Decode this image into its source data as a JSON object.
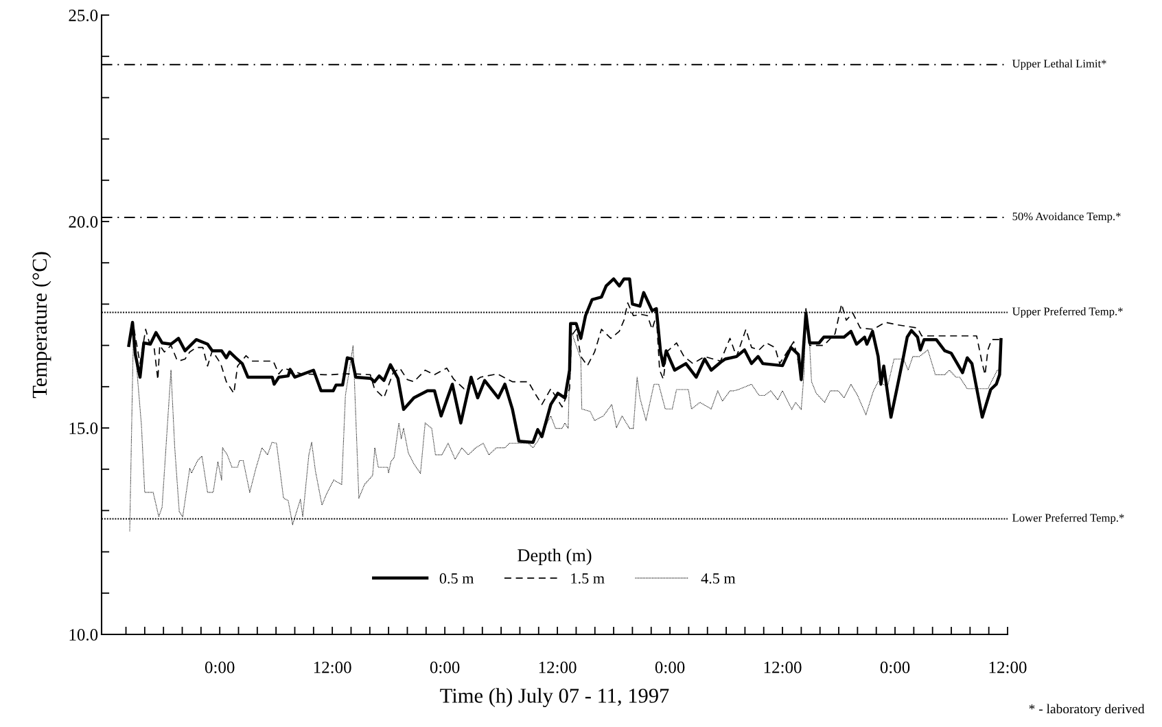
{
  "chart_data": {
    "type": "line",
    "xlabel": "Time (h) July 07 - 11, 1997",
    "ylabel": "Temperature (°C)",
    "legend_title": "Depth (m)",
    "legend": "bottom",
    "grid": false,
    "xlim": [
      "1997-07-07T11:24",
      "1997-07-11T12:00"
    ],
    "ylim": [
      10,
      25
    ],
    "xticks": [
      {
        "value": "1997-07-07T14:00",
        "label": null
      },
      {
        "value": "1997-07-07T16:00",
        "label": null
      },
      {
        "value": "1997-07-07T18:00",
        "label": null
      },
      {
        "value": "1997-07-07T20:00",
        "label": null
      },
      {
        "value": "1997-07-07T22:00",
        "label": null
      },
      {
        "value": "1997-07-08T00:00",
        "label": "0:00"
      },
      {
        "value": "1997-07-08T02:00",
        "label": null
      },
      {
        "value": "1997-07-08T04:00",
        "label": null
      },
      {
        "value": "1997-07-08T06:00",
        "label": null
      },
      {
        "value": "1997-07-08T08:00",
        "label": null
      },
      {
        "value": "1997-07-08T10:00",
        "label": null
      },
      {
        "value": "1997-07-08T12:00",
        "label": "12:00"
      },
      {
        "value": "1997-07-08T14:00",
        "label": null
      },
      {
        "value": "1997-07-08T16:00",
        "label": null
      },
      {
        "value": "1997-07-08T18:00",
        "label": null
      },
      {
        "value": "1997-07-08T20:00",
        "label": null
      },
      {
        "value": "1997-07-08T22:00",
        "label": null
      },
      {
        "value": "1997-07-09T00:00",
        "label": "0:00"
      },
      {
        "value": "1997-07-09T02:00",
        "label": null
      },
      {
        "value": "1997-07-09T04:00",
        "label": null
      },
      {
        "value": "1997-07-09T06:00",
        "label": null
      },
      {
        "value": "1997-07-09T08:00",
        "label": null
      },
      {
        "value": "1997-07-09T10:00",
        "label": null
      },
      {
        "value": "1997-07-09T12:00",
        "label": "12:00"
      },
      {
        "value": "1997-07-09T14:00",
        "label": null
      },
      {
        "value": "1997-07-09T16:00",
        "label": null
      },
      {
        "value": "1997-07-09T18:00",
        "label": null
      },
      {
        "value": "1997-07-09T20:00",
        "label": null
      },
      {
        "value": "1997-07-09T22:00",
        "label": null
      },
      {
        "value": "1997-07-10T00:00",
        "label": "0:00"
      },
      {
        "value": "1997-07-10T02:00",
        "label": null
      },
      {
        "value": "1997-07-10T04:00",
        "label": null
      },
      {
        "value": "1997-07-10T06:00",
        "label": null
      },
      {
        "value": "1997-07-10T08:00",
        "label": null
      },
      {
        "value": "1997-07-10T10:00",
        "label": null
      },
      {
        "value": "1997-07-10T12:00",
        "label": "12:00"
      },
      {
        "value": "1997-07-10T14:00",
        "label": null
      },
      {
        "value": "1997-07-10T16:00",
        "label": null
      },
      {
        "value": "1997-07-10T18:00",
        "label": null
      },
      {
        "value": "1997-07-10T20:00",
        "label": null
      },
      {
        "value": "1997-07-10T22:00",
        "label": null
      },
      {
        "value": "1997-07-11T00:00",
        "label": "0:00"
      },
      {
        "value": "1997-07-11T02:00",
        "label": null
      },
      {
        "value": "1997-07-11T04:00",
        "label": null
      },
      {
        "value": "1997-07-11T06:00",
        "label": null
      },
      {
        "value": "1997-07-11T08:00",
        "label": null
      },
      {
        "value": "1997-07-11T10:00",
        "label": null
      },
      {
        "value": "1997-07-11T12:00",
        "label": "12:00"
      }
    ],
    "yticks": [
      {
        "value": 10,
        "label": "10.0"
      },
      {
        "value": 11,
        "label": null
      },
      {
        "value": 12,
        "label": null
      },
      {
        "value": 13,
        "label": null
      },
      {
        "value": 14,
        "label": null
      },
      {
        "value": 15,
        "label": "15.0"
      },
      {
        "value": 16,
        "label": null
      },
      {
        "value": 17,
        "label": null
      },
      {
        "value": 18,
        "label": null
      },
      {
        "value": 19,
        "label": null
      },
      {
        "value": 20,
        "label": "20.0"
      },
      {
        "value": 21,
        "label": null
      },
      {
        "value": 22,
        "label": null
      },
      {
        "value": 23,
        "label": null
      },
      {
        "value": 24,
        "label": null
      },
      {
        "value": 25,
        "label": "25.0"
      }
    ],
    "ref_lines": [
      {
        "axis": "y",
        "value": 23.8,
        "label": "Upper Lethal Limit*",
        "line_style": "dashdot",
        "color": "#000000"
      },
      {
        "axis": "y",
        "value": 20.1,
        "label": "50% Avoidance Temp.*",
        "line_style": "dashdot",
        "color": "#000000"
      },
      {
        "axis": "y",
        "value": 17.8,
        "label": "Upper Preferred Temp.*",
        "line_style": "dotted",
        "color": "#000000"
      },
      {
        "axis": "y",
        "value": 12.8,
        "label": "Lower Preferred Temp.*",
        "line_style": "dotted",
        "color": "#000000"
      }
    ],
    "annotations": [
      "* - laboratory derived"
    ],
    "series": [
      {
        "name": "0.5 m",
        "color": "#000000",
        "line_style": "solid",
        "x": [
          "1997-07-07T14:18",
          "1997-07-07T14:42",
          "1997-07-07T15:00",
          "1997-07-07T15:30",
          "1997-07-07T15:54",
          "1997-07-07T16:36",
          "1997-07-07T17:12",
          "1997-07-07T17:51",
          "1997-07-07T18:48",
          "1997-07-07T19:36",
          "1997-07-07T20:18",
          "1997-07-07T21:30",
          "1997-07-07T22:42",
          "1997-07-07T23:12",
          "1997-07-08T00:12",
          "1997-07-08T00:42",
          "1997-07-08T01:03",
          "1997-07-08T01:42",
          "1997-07-08T02:24",
          "1997-07-08T03:00",
          "1997-07-08T05:36",
          "1997-07-08T05:48",
          "1997-07-08T06:18",
          "1997-07-08T07:18",
          "1997-07-08T07:30",
          "1997-07-08T08:00",
          "1997-07-08T10:00",
          "1997-07-08T10:48",
          "1997-07-08T12:06",
          "1997-07-08T12:24",
          "1997-07-08T13:06",
          "1997-07-08T13:36",
          "1997-07-08T14:06",
          "1997-07-08T14:30",
          "1997-07-08T16:06",
          "1997-07-08T16:30",
          "1997-07-08T17:00",
          "1997-07-08T17:30",
          "1997-07-08T18:12",
          "1997-07-08T19:00",
          "1997-07-08T19:36",
          "1997-07-08T20:42",
          "1997-07-08T22:09",
          "1997-07-08T22:54",
          "1997-07-08T23:36",
          "1997-07-09T00:48",
          "1997-07-09T01:42",
          "1997-07-09T02:48",
          "1997-07-09T03:30",
          "1997-07-09T04:15",
          "1997-07-09T05:42",
          "1997-07-09T06:24",
          "1997-07-09T07:12",
          "1997-07-09T07:54",
          "1997-07-09T09:24",
          "1997-07-09T09:54",
          "1997-07-09T10:21",
          "1997-07-09T11:18",
          "1997-07-09T12:03",
          "1997-07-09T12:48",
          "1997-07-09T13:18",
          "1997-07-09T13:24",
          "1997-07-09T14:00",
          "1997-07-09T14:30",
          "1997-07-09T15:00",
          "1997-07-09T15:42",
          "1997-07-09T16:42",
          "1997-07-09T17:12",
          "1997-07-09T18:00",
          "1997-07-09T18:36",
          "1997-07-09T19:06",
          "1997-07-09T19:42",
          "1997-07-09T20:00",
          "1997-07-09T20:48",
          "1997-07-09T21:12",
          "1997-07-09T22:06",
          "1997-07-09T22:33",
          "1997-07-09T23:00",
          "1997-07-09T23:18",
          "1997-07-09T23:36",
          "1997-07-10T00:30",
          "1997-07-10T01:42",
          "1997-07-10T02:48",
          "1997-07-10T03:42",
          "1997-07-10T04:24",
          "1997-07-10T05:24",
          "1997-07-10T05:54",
          "1997-07-10T07:06",
          "1997-07-10T07:57",
          "1997-07-10T08:42",
          "1997-07-10T09:24",
          "1997-07-10T09:54",
          "1997-07-10T12:00",
          "1997-07-10T12:54",
          "1997-07-10T13:42",
          "1997-07-10T14:00",
          "1997-07-10T14:30",
          "1997-07-10T14:54",
          "1997-07-10T15:54",
          "1997-07-10T16:24",
          "1997-07-10T18:34",
          "1997-07-10T19:18",
          "1997-07-10T19:54",
          "1997-07-10T20:45",
          "1997-07-10T21:00",
          "1997-07-10T21:36",
          "1997-07-10T22:12",
          "1997-07-10T22:30",
          "1997-07-10T22:48",
          "1997-07-10T23:34",
          "1997-07-11T00:12",
          "1997-07-11T00:54",
          "1997-07-11T01:18",
          "1997-07-11T01:45",
          "1997-07-11T02:24",
          "1997-07-11T02:42",
          "1997-07-11T03:06",
          "1997-07-11T04:24",
          "1997-07-11T05:18",
          "1997-07-11T06:00",
          "1997-07-11T07:12",
          "1997-07-11T07:42",
          "1997-07-11T08:12",
          "1997-07-11T09:18",
          "1997-07-11T10:12",
          "1997-07-11T10:48",
          "1997-07-11T11:09",
          "1997-07-11T11:18"
        ],
        "values": [
          17.0,
          17.56,
          16.78,
          16.23,
          17.06,
          17.03,
          17.31,
          17.06,
          17.03,
          17.17,
          16.87,
          17.14,
          17.03,
          16.87,
          16.87,
          16.7,
          16.84,
          16.7,
          16.56,
          16.23,
          16.23,
          16.06,
          16.23,
          16.26,
          16.42,
          16.23,
          16.4,
          15.9,
          15.9,
          16.04,
          16.04,
          16.7,
          16.67,
          16.23,
          16.2,
          16.12,
          16.26,
          16.15,
          16.53,
          16.2,
          15.45,
          15.73,
          15.9,
          15.9,
          15.29,
          16.06,
          15.12,
          16.23,
          15.73,
          16.15,
          15.73,
          16.06,
          15.46,
          14.68,
          14.65,
          14.96,
          14.79,
          15.57,
          15.84,
          15.73,
          16.4,
          17.53,
          17.53,
          17.17,
          17.72,
          18.11,
          18.17,
          18.44,
          18.61,
          18.44,
          18.61,
          18.61,
          18.0,
          17.95,
          18.28,
          17.84,
          17.89,
          16.84,
          16.51,
          16.87,
          16.4,
          16.56,
          16.23,
          16.67,
          16.4,
          16.59,
          16.67,
          16.73,
          16.89,
          16.56,
          16.73,
          16.56,
          16.51,
          16.95,
          16.78,
          16.17,
          17.78,
          17.06,
          17.06,
          17.2,
          17.2,
          17.34,
          17.03,
          17.2,
          17.03,
          17.34,
          16.73,
          16.06,
          16.5,
          15.26,
          15.95,
          16.73,
          17.2,
          17.36,
          17.2,
          16.89,
          17.14,
          17.14,
          16.87,
          16.81,
          16.34,
          16.7,
          16.56,
          15.26,
          15.93,
          16.06,
          16.29,
          17.14
        ]
      },
      {
        "name": "1.5 m",
        "color": "#000000",
        "line_style": "dashed",
        "x": [
          "1997-07-07T14:18",
          "1997-07-07T14:48",
          "1997-07-07T15:30",
          "1997-07-07T16:06",
          "1997-07-07T16:30",
          "1997-07-07T17:00",
          "1997-07-07T17:24",
          "1997-07-07T17:36",
          "1997-07-07T18:06",
          "1997-07-07T18:48",
          "1997-07-07T19:24",
          "1997-07-07T19:36",
          "1997-07-07T20:18",
          "1997-07-07T20:48",
          "1997-07-07T21:30",
          "1997-07-07T22:12",
          "1997-07-07T22:42",
          "1997-07-07T23:12",
          "1997-07-08T00:06",
          "1997-07-08T00:42",
          "1997-07-08T01:30",
          "1997-07-08T01:54",
          "1997-07-08T02:48",
          "1997-07-08T03:24",
          "1997-07-08T05:42",
          "1997-07-08T06:18",
          "1997-07-08T06:48",
          "1997-07-08T08:42",
          "1997-07-08T11:12",
          "1997-07-08T11:54",
          "1997-07-08T13:06",
          "1997-07-08T14:18",
          "1997-07-08T16:03",
          "1997-07-08T16:30",
          "1997-07-08T17:30",
          "1997-07-08T18:30",
          "1997-07-08T19:12",
          "1997-07-08T20:00",
          "1997-07-08T20:42",
          "1997-07-08T21:54",
          "1997-07-08T22:54",
          "1997-07-09T00:12",
          "1997-07-09T00:57",
          "1997-07-09T02:03",
          "1997-07-09T03:48",
          "1997-07-09T05:36",
          "1997-07-09T07:12",
          "1997-07-09T08:54",
          "1997-07-09T09:36",
          "1997-07-09T10:21",
          "1997-07-09T11:18",
          "1997-07-09T12:30",
          "1997-07-09T13:18",
          "1997-07-09T13:30",
          "1997-07-09T14:00",
          "1997-07-09T14:30",
          "1997-07-09T15:12",
          "1997-07-09T15:58",
          "1997-07-09T16:42",
          "1997-07-09T17:42",
          "1997-07-09T18:36",
          "1997-07-09T19:06",
          "1997-07-09T19:30",
          "1997-07-09T20:06",
          "1997-07-09T21:00",
          "1997-07-09T21:36",
          "1997-07-09T22:06",
          "1997-07-09T22:33",
          "1997-07-09T22:54",
          "1997-07-09T23:18",
          "1997-07-09T23:39",
          "1997-07-10T00:42",
          "1997-07-10T01:30",
          "1997-07-10T02:27",
          "1997-07-10T03:42",
          "1997-07-10T05:24",
          "1997-07-10T06:24",
          "1997-07-10T07:06",
          "1997-07-10T08:06",
          "1997-07-10T08:42",
          "1997-07-10T09:30",
          "1997-07-10T10:16",
          "1997-07-10T11:12",
          "1997-07-10T11:42",
          "1997-07-10T13:12",
          "1997-07-10T14:00",
          "1997-07-10T14:30",
          "1997-07-10T14:54",
          "1997-07-10T16:24",
          "1997-07-10T17:36",
          "1997-07-10T18:18",
          "1997-07-10T18:48",
          "1997-07-10T19:30",
          "1997-07-10T20:18",
          "1997-07-10T21:42",
          "1997-07-10T22:57",
          "1997-07-11T00:12",
          "1997-07-11T01:36",
          "1997-07-11T02:24",
          "1997-07-11T02:51",
          "1997-07-11T04:06",
          "1997-07-11T08:42",
          "1997-07-11T09:18",
          "1997-07-11T09:36",
          "1997-07-11T09:54",
          "1997-07-11T10:18",
          "1997-07-11T11:18"
        ],
        "values": [
          17.0,
          17.47,
          16.56,
          17.39,
          17.06,
          16.95,
          16.17,
          17.0,
          16.84,
          17.0,
          16.67,
          16.62,
          16.67,
          16.84,
          16.95,
          16.95,
          16.5,
          16.87,
          16.56,
          16.12,
          15.84,
          16.5,
          16.75,
          16.62,
          16.62,
          16.31,
          16.45,
          16.31,
          16.29,
          16.29,
          16.31,
          16.31,
          16.29,
          15.95,
          15.73,
          16.34,
          16.45,
          16.17,
          16.12,
          16.4,
          16.29,
          16.45,
          16.18,
          15.95,
          16.23,
          16.31,
          16.12,
          16.12,
          15.84,
          15.57,
          15.95,
          15.51,
          15.95,
          17.23,
          17.39,
          16.73,
          16.51,
          16.84,
          17.39,
          17.17,
          17.34,
          17.61,
          18.03,
          17.72,
          17.75,
          17.72,
          17.39,
          17.72,
          16.4,
          16.18,
          16.84,
          17.06,
          16.73,
          16.56,
          16.73,
          16.62,
          17.17,
          16.73,
          17.39,
          16.95,
          16.89,
          17.06,
          16.95,
          16.56,
          17.09,
          16.29,
          17.89,
          17.0,
          17.0,
          17.28,
          18.0,
          17.61,
          17.78,
          17.42,
          17.39,
          17.56,
          17.5,
          17.45,
          17.42,
          17.23,
          17.23,
          17.23,
          16.56,
          16.29,
          16.89,
          17.14,
          17.14
        ]
      },
      {
        "name": "4.5 m",
        "color": "#000000",
        "line_style": "dotted",
        "x": [
          "1997-07-07T14:24",
          "1997-07-07T14:48",
          "1997-07-07T15:39",
          "1997-07-07T16:00",
          "1997-07-07T16:54",
          "1997-07-07T17:30",
          "1997-07-07T17:51",
          "1997-07-07T18:48",
          "1997-07-07T19:12",
          "1997-07-07T19:41",
          "1997-07-07T20:03",
          "1997-07-07T20:48",
          "1997-07-07T21:00",
          "1997-07-07T21:38",
          "1997-07-07T22:06",
          "1997-07-07T22:42",
          "1997-07-07T23:18",
          "1997-07-07T23:48",
          "1997-07-08T00:12",
          "1997-07-08T00:18",
          "1997-07-08T00:48",
          "1997-07-08T01:18",
          "1997-07-08T01:54",
          "1997-07-08T02:06",
          "1997-07-08T02:30",
          "1997-07-08T03:12",
          "1997-07-08T03:51",
          "1997-07-08T04:30",
          "1997-07-08T05:06",
          "1997-07-08T05:34",
          "1997-07-08T06:03",
          "1997-07-08T06:48",
          "1997-07-08T07:18",
          "1997-07-08T07:46",
          "1997-07-08T08:36",
          "1997-07-08T08:51",
          "1997-07-08T09:30",
          "1997-07-08T09:48",
          "1997-07-08T10:12",
          "1997-07-08T10:54",
          "1997-07-08T11:24",
          "1997-07-08T12:09",
          "1997-07-08T13:00",
          "1997-07-08T13:24",
          "1997-07-08T14:13",
          "1997-07-08T14:50",
          "1997-07-08T15:26",
          "1997-07-08T16:18",
          "1997-07-08T16:32",
          "1997-07-08T16:54",
          "1997-07-08T17:54",
          "1997-07-08T18:00",
          "1997-07-08T18:15",
          "1997-07-08T18:36",
          "1997-07-08T19:06",
          "1997-07-08T19:21",
          "1997-07-08T19:36",
          "1997-07-08T20:06",
          "1997-07-08T20:42",
          "1997-07-08T21:24",
          "1997-07-08T21:54",
          "1997-07-08T22:36",
          "1997-07-08T23:00",
          "1997-07-08T23:42",
          "1997-07-09T00:21",
          "1997-07-09T01:06",
          "1997-07-09T01:48",
          "1997-07-09T02:30",
          "1997-07-09T03:18",
          "1997-07-09T04:06",
          "1997-07-09T04:42",
          "1997-07-09T05:30",
          "1997-07-09T06:24",
          "1997-07-09T06:54",
          "1997-07-09T07:42",
          "1997-07-09T08:54",
          "1997-07-09T09:24",
          "1997-07-09T09:54",
          "1997-07-09T11:18",
          "1997-07-09T11:48",
          "1997-07-09T12:30",
          "1997-07-09T12:48",
          "1997-07-09T13:09",
          "1997-07-09T13:24",
          "1997-07-09T14:30",
          "1997-07-09T14:36",
          "1997-07-09T15:30",
          "1997-07-09T15:58",
          "1997-07-09T16:54",
          "1997-07-09T17:48",
          "1997-07-09T18:18",
          "1997-07-09T18:54",
          "1997-07-09T19:42",
          "1997-07-09T20:06",
          "1997-07-09T20:30",
          "1997-07-09T20:48",
          "1997-07-09T21:27",
          "1997-07-09T22:18",
          "1997-07-09T22:48",
          "1997-07-09T23:30",
          "1997-07-10T00:15",
          "1997-07-10T00:42",
          "1997-07-10T01:58",
          "1997-07-10T02:18",
          "1997-07-10T03:12",
          "1997-07-10T04:24",
          "1997-07-10T05:06",
          "1997-07-10T05:36",
          "1997-07-10T06:24",
          "1997-07-10T06:48",
          "1997-07-10T07:18",
          "1997-07-10T08:42",
          "1997-07-10T09:30",
          "1997-07-10T10:06",
          "1997-07-10T10:45",
          "1997-07-10T11:30",
          "1997-07-10T12:00",
          "1997-07-10T13:00",
          "1997-07-10T13:24",
          "1997-07-10T14:00",
          "1997-07-10T14:18",
          "1997-07-10T14:30",
          "1997-07-10T14:54",
          "1997-07-10T15:06",
          "1997-07-10T15:36",
          "1997-07-10T16:30",
          "1997-07-10T17:06",
          "1997-07-10T17:57",
          "1997-07-10T18:34",
          "1997-07-10T19:18",
          "1997-07-10T20:00",
          "1997-07-10T20:54",
          "1997-07-10T21:42",
          "1997-07-10T22:12",
          "1997-07-10T23:12",
          "1997-07-10T23:54",
          "1997-07-11T00:54",
          "1997-07-11T01:24",
          "1997-07-11T01:54",
          "1997-07-11T02:36",
          "1997-07-11T03:30",
          "1997-07-11T04:18",
          "1997-07-11T05:18",
          "1997-07-11T05:48",
          "1997-07-11T06:30",
          "1997-07-11T06:54",
          "1997-07-11T07:42",
          "1997-07-11T08:12",
          "1997-07-11T08:57",
          "1997-07-11T09:54",
          "1997-07-11T10:54",
          "1997-07-11T11:18"
        ],
        "values": [
          12.5,
          17.39,
          15.07,
          13.44,
          13.44,
          12.85,
          13.08,
          16.4,
          14.52,
          12.97,
          12.85,
          14.02,
          13.91,
          14.21,
          14.32,
          13.44,
          13.44,
          14.18,
          13.74,
          14.52,
          14.35,
          14.05,
          14.05,
          14.21,
          14.21,
          13.44,
          14.02,
          14.52,
          14.35,
          14.65,
          14.63,
          13.3,
          13.24,
          12.66,
          13.27,
          12.85,
          14.35,
          14.65,
          13.96,
          13.13,
          13.41,
          13.74,
          13.63,
          15.79,
          17.0,
          13.3,
          13.63,
          13.85,
          14.52,
          14.05,
          14.05,
          13.91,
          14.18,
          14.29,
          15.12,
          14.74,
          14.99,
          14.4,
          14.13,
          13.9,
          15.12,
          14.99,
          14.35,
          14.35,
          14.63,
          14.24,
          14.52,
          14.35,
          14.52,
          14.63,
          14.35,
          14.52,
          14.52,
          14.63,
          14.63,
          14.63,
          14.52,
          14.68,
          15.29,
          14.99,
          14.99,
          15.12,
          14.99,
          17.39,
          16.67,
          15.46,
          15.4,
          15.18,
          15.29,
          15.57,
          15.01,
          15.29,
          14.99,
          14.99,
          16.23,
          15.73,
          15.18,
          16.06,
          16.06,
          15.46,
          15.46,
          15.93,
          15.93,
          15.46,
          15.62,
          15.46,
          15.9,
          15.65,
          15.9,
          15.9,
          15.93,
          16.06,
          15.79,
          15.79,
          15.9,
          15.68,
          15.9,
          15.45,
          15.62,
          15.45,
          16.34,
          17.78,
          17.0,
          16.12,
          15.84,
          15.62,
          15.9,
          15.9,
          15.73,
          16.06,
          15.79,
          15.32,
          15.9,
          16.12,
          16.01,
          16.67,
          16.67,
          16.4,
          16.73,
          16.73,
          16.89,
          16.29,
          16.29,
          16.4,
          16.23,
          16.23,
          15.95,
          15.95,
          15.95,
          15.95,
          16.4,
          16.4
        ]
      }
    ]
  }
}
